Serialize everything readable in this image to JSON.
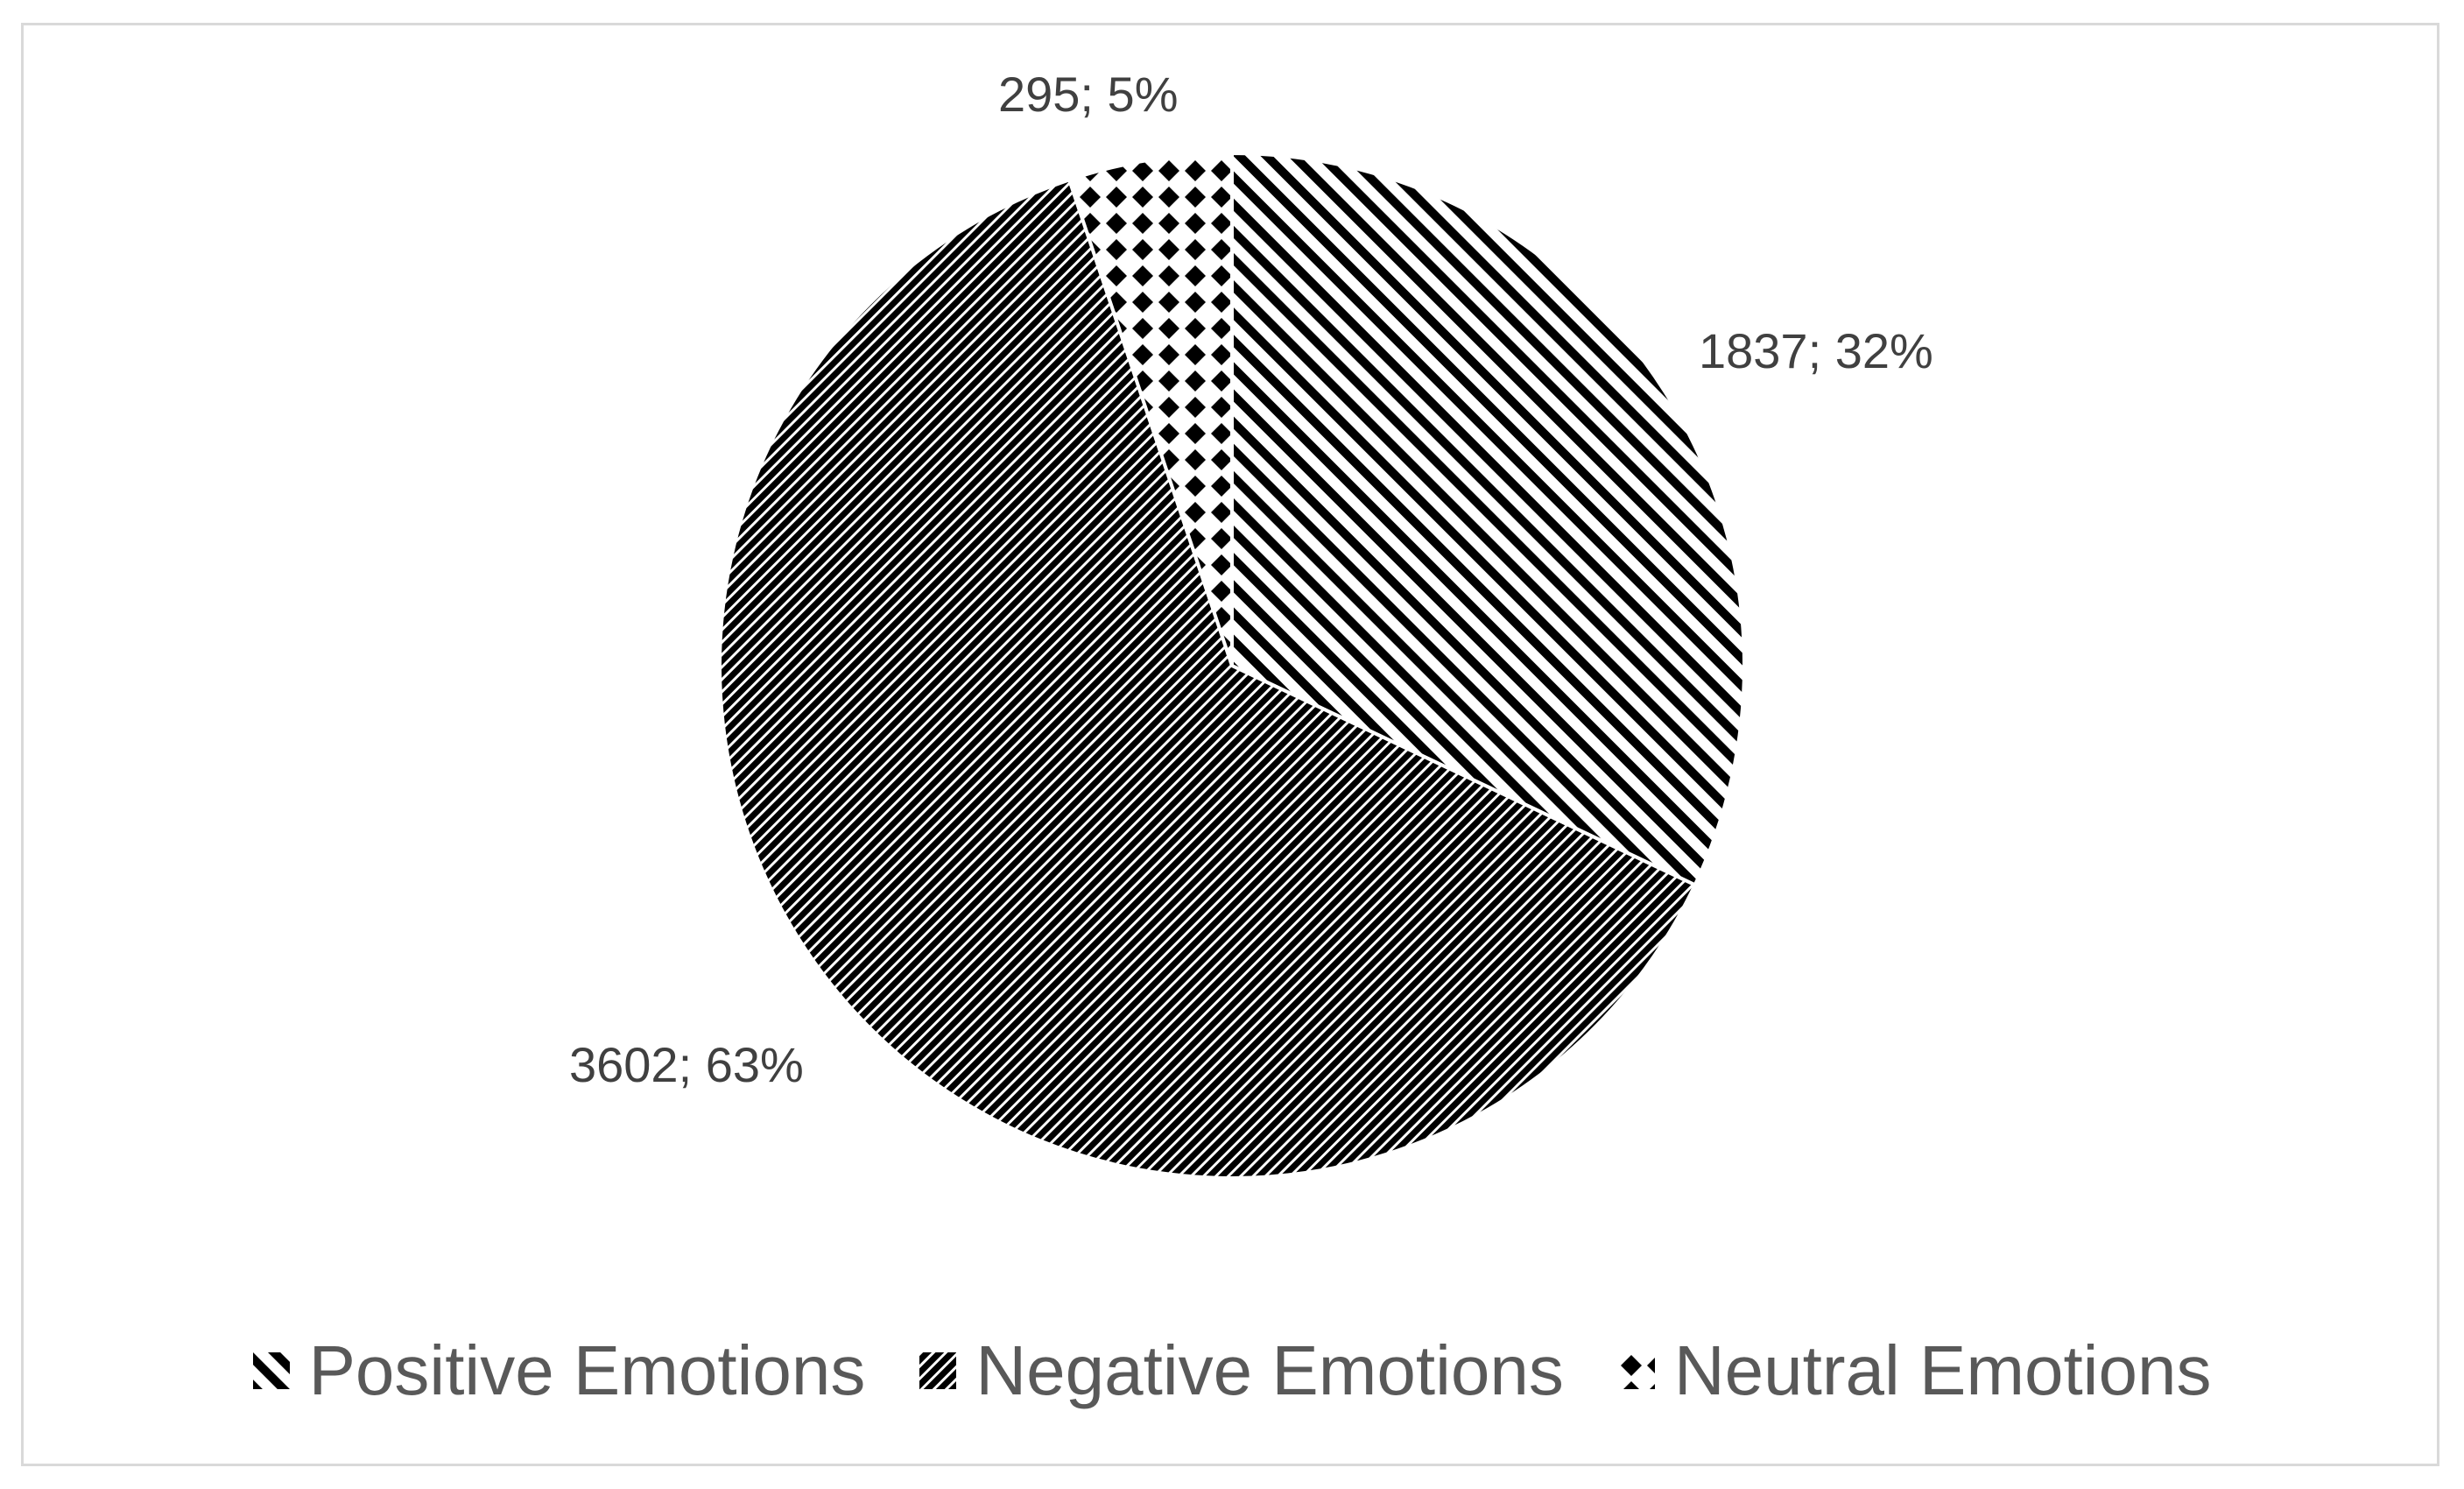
{
  "chart_data": {
    "type": "pie",
    "title": "",
    "slices": [
      {
        "label": "Positive Emotions",
        "value": 1837,
        "percent": 32,
        "data_label": "1837; 32%",
        "pattern": "wide-diagonal-hatch"
      },
      {
        "label": "Negative Emotions",
        "value": 3602,
        "percent": 63,
        "data_label": "3602; 63%",
        "pattern": "dense-diagonal-hatch"
      },
      {
        "label": "Neutral Emotions",
        "value": 295,
        "percent": 5,
        "data_label": "295; 5%",
        "pattern": "diamond-checker"
      }
    ],
    "start_angle": "12 o'clock",
    "direction": "clockwise",
    "legend_position": "bottom"
  },
  "colors": {
    "pattern_fg": "#000000",
    "pattern_bg": "#ffffff",
    "label_text": "#404040",
    "legend_text": "#595959",
    "border": "#d9d9d9"
  }
}
